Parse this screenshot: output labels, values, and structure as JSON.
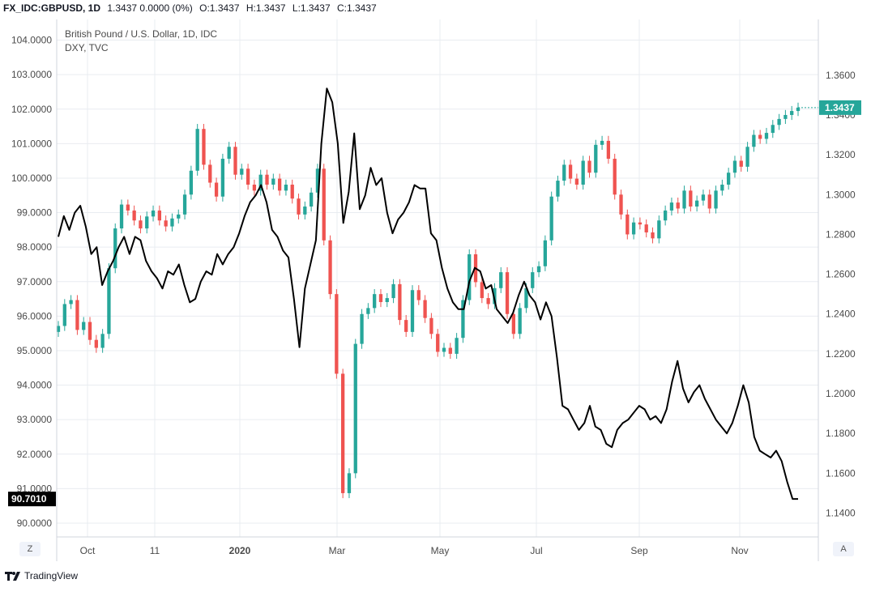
{
  "header": {
    "symbol": "FX_IDC:GBPUSD, 1D",
    "change": "1.3437 0.0000 (0%)",
    "open": "O:1.3437",
    "high": "H:1.3437",
    "low": "L:1.3437",
    "close": "C:1.3437"
  },
  "legend": {
    "series_title": "British Pound / U.S. Dollar, 1D, IDC",
    "overlay_title": "DXY, TVC"
  },
  "badges": {
    "left_last": "90.7010",
    "right_last": "1.3437"
  },
  "footer": {
    "left_button": "Z",
    "right_button": "A",
    "brand": "TradingView"
  },
  "colors": {
    "up": "#26a69a",
    "down": "#ef5350",
    "dxy": "#000000",
    "grid": "#e9ecf1",
    "badge_right": "#26a69a",
    "badge_left": "#000000"
  },
  "chart_data": {
    "type": "line",
    "x_tick_labels": [
      "Oct",
      "11",
      "2020",
      "Mar",
      "May",
      "Jul",
      "Sep",
      "Nov"
    ],
    "left_axis": {
      "ticks": [
        "90.0000",
        "91.0000",
        "92.0000",
        "93.0000",
        "94.0000",
        "95.0000",
        "96.0000",
        "97.0000",
        "98.0000",
        "99.0000",
        "100.0000",
        "101.0000",
        "102.0000",
        "103.0000",
        "104.0000"
      ],
      "ylim": [
        89.6,
        104.6
      ]
    },
    "right_axis": {
      "ticks": [
        "1.1400",
        "1.1600",
        "1.1800",
        "1.2000",
        "1.2200",
        "1.2400",
        "1.2600",
        "1.2800",
        "1.3000",
        "1.3200",
        "1.3400",
        "1.3600"
      ],
      "ylim": [
        1.128,
        1.388
      ]
    },
    "grid": true,
    "series": [
      {
        "name": "DXY, TVC",
        "axis": "left",
        "style": "line",
        "values": [
          98.3,
          98.9,
          98.5,
          99.0,
          99.2,
          98.6,
          97.8,
          98.0,
          96.9,
          97.3,
          97.6,
          98.0,
          98.3,
          97.8,
          98.3,
          98.2,
          97.6,
          97.3,
          97.1,
          96.8,
          97.3,
          97.2,
          97.5,
          96.9,
          96.4,
          96.5,
          97.0,
          97.3,
          97.2,
          97.8,
          97.5,
          97.8,
          98.0,
          98.4,
          98.9,
          99.3,
          99.5,
          99.8,
          99.3,
          98.5,
          98.3,
          97.9,
          97.7,
          96.5,
          95.1,
          96.8,
          97.5,
          98.2,
          101.0,
          102.6,
          102.2,
          101.0,
          98.7,
          99.6,
          101.3,
          99.1,
          99.5,
          100.3,
          99.8,
          100.0,
          99.0,
          98.4,
          98.8,
          99.0,
          99.3,
          99.8,
          99.7,
          99.7,
          98.4,
          98.2,
          97.4,
          96.8,
          96.4,
          96.2,
          96.2,
          97.0,
          97.4,
          97.3,
          96.8,
          96.9,
          96.2,
          96.0,
          95.8,
          96.1,
          96.6,
          97.0,
          96.6,
          96.4,
          95.9,
          96.4,
          96.0,
          94.8,
          93.4,
          93.3,
          93.0,
          92.7,
          92.9,
          93.4,
          92.8,
          92.7,
          92.3,
          92.2,
          92.7,
          92.9,
          93.0,
          93.2,
          93.4,
          93.3,
          93.0,
          93.1,
          92.9,
          93.3,
          94.1,
          94.7,
          93.9,
          93.5,
          93.8,
          94.0,
          93.6,
          93.3,
          93.0,
          92.8,
          92.6,
          92.9,
          93.4,
          94.0,
          93.5,
          92.5,
          92.1,
          92.0,
          91.9,
          92.1,
          91.8,
          91.2,
          90.7,
          90.7
        ]
      },
      {
        "name": "British Pound / U.S. Dollar, 1D, IDC",
        "axis": "right",
        "style": "candlestick",
        "values": [
          1.234,
          1.245,
          1.247,
          1.232,
          1.236,
          1.227,
          1.223,
          1.23,
          1.263,
          1.283,
          1.295,
          1.292,
          1.287,
          1.283,
          1.289,
          1.292,
          1.287,
          1.284,
          1.288,
          1.29,
          1.3,
          1.312,
          1.333,
          1.315,
          1.306,
          1.299,
          1.318,
          1.324,
          1.31,
          1.313,
          1.305,
          1.302,
          1.31,
          1.305,
          1.308,
          1.302,
          1.305,
          1.298,
          1.29,
          1.294,
          1.301,
          1.313,
          1.277,
          1.25,
          1.21,
          1.15,
          1.16,
          1.225,
          1.24,
          1.243,
          1.25,
          1.246,
          1.248,
          1.255,
          1.237,
          1.231,
          1.252,
          1.247,
          1.238,
          1.23,
          1.221,
          1.223,
          1.22,
          1.228,
          1.247,
          1.27,
          1.256,
          1.248,
          1.245,
          1.253,
          1.261,
          1.24,
          1.23,
          1.243,
          1.253,
          1.261,
          1.264,
          1.277,
          1.299,
          1.307,
          1.315,
          1.308,
          1.305,
          1.317,
          1.311,
          1.325,
          1.327,
          1.318,
          1.3,
          1.29,
          1.28,
          1.286,
          1.285,
          1.281,
          1.278,
          1.287,
          1.292,
          1.296,
          1.293,
          1.302,
          1.294,
          1.297,
          1.3,
          1.293,
          1.302,
          1.305,
          1.311,
          1.317,
          1.314,
          1.324,
          1.33,
          1.328,
          1.331,
          1.335,
          1.338,
          1.34,
          1.342,
          1.3437
        ]
      }
    ]
  }
}
